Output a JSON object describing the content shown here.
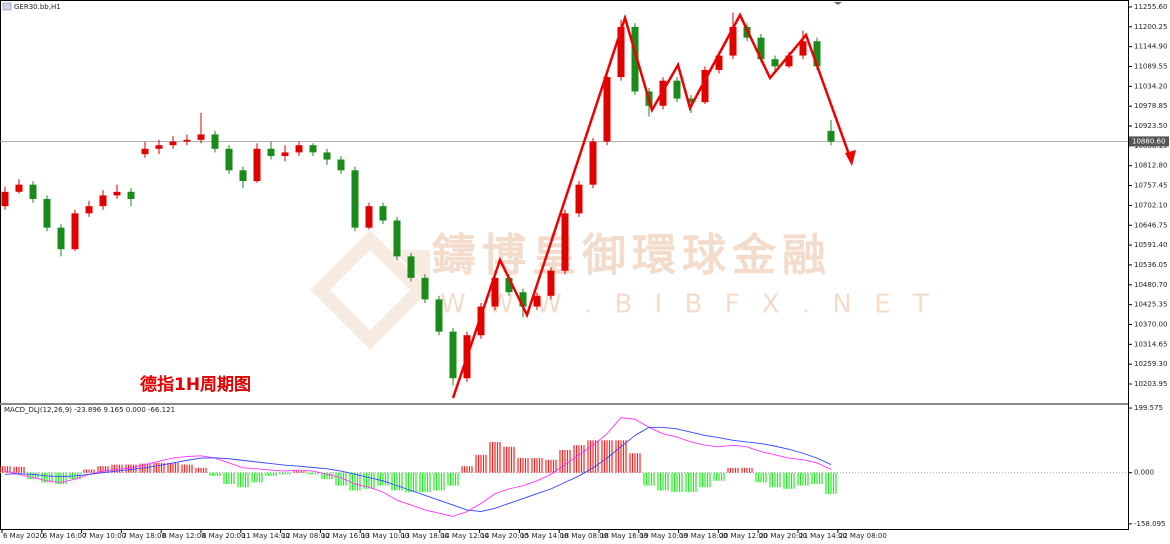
{
  "chart_data": {
    "type": "candlestick",
    "symbol": "GER30.bb,H1",
    "annotation": "德指1H周期图",
    "watermark": "鑄博皇御環球金融",
    "watermark_url": "W W W . B I B F X . N E T",
    "up_color": "#e00000",
    "down_color": "#1a8a1a",
    "ylim": [
      10151,
      11275
    ],
    "yticks": [
      {
        "value": 11255.6,
        "label": "11255.60"
      },
      {
        "value": 11200.25,
        "label": "11200.25"
      },
      {
        "value": 11144.9,
        "label": "11144.90"
      },
      {
        "value": 11089.55,
        "label": "11089.55"
      },
      {
        "value": 11034.2,
        "label": "11034.20"
      },
      {
        "value": 10978.85,
        "label": "10978.85"
      },
      {
        "value": 10923.5,
        "label": "10923.50"
      },
      {
        "value": 10868.15,
        "label": "10868.15"
      },
      {
        "value": 10812.8,
        "label": "10812.80"
      },
      {
        "value": 10757.45,
        "label": "10757.45"
      },
      {
        "value": 10702.1,
        "label": "10702.10"
      },
      {
        "value": 10646.75,
        "label": "10646.75"
      },
      {
        "value": 10591.4,
        "label": "10591.40"
      },
      {
        "value": 10536.05,
        "label": "10536.05"
      },
      {
        "value": 10480.7,
        "label": "10480.70"
      },
      {
        "value": 10425.35,
        "label": "10425.35"
      },
      {
        "value": 10370,
        "label": "10370.00"
      },
      {
        "value": 10314.65,
        "label": "10314.65"
      },
      {
        "value": 10259.3,
        "label": "10259.30"
      },
      {
        "value": 10203.95,
        "label": "10203.95"
      }
    ],
    "current_price": {
      "value": 10880.6,
      "label": "10880.60"
    },
    "x_labels": [
      "6 May 2020",
      "6 May 16:00",
      "7 May 10:00",
      "7 May 18:00",
      "8 May 12:00",
      "8 May 20:00",
      "11 May 14:00",
      "12 May 08:00",
      "12 May 16:00",
      "13 May 10:00",
      "13 May 18:00",
      "14 May 12:00",
      "14 May 20:00",
      "15 May 14:00",
      "18 May 08:00",
      "18 May 16:00",
      "19 May 10:00",
      "19 May 18:00",
      "20 May 12:00",
      "20 May 20:00",
      "21 May 14:00",
      "22 May 08:00"
    ],
    "ohlc": [
      [
        10700,
        10755,
        10690,
        10740
      ],
      [
        10740,
        10775,
        10735,
        10760
      ],
      [
        10760,
        10770,
        10710,
        10720
      ],
      [
        10720,
        10730,
        10630,
        10640
      ],
      [
        10640,
        10650,
        10560,
        10580
      ],
      [
        10580,
        10690,
        10575,
        10680
      ],
      [
        10680,
        10715,
        10670,
        10700
      ],
      [
        10700,
        10745,
        10690,
        10730
      ],
      [
        10730,
        10760,
        10720,
        10740
      ],
      [
        10740,
        10750,
        10700,
        10720
      ],
      [
        10845,
        10880,
        10835,
        10860
      ],
      [
        10860,
        10885,
        10845,
        10870
      ],
      [
        10870,
        10895,
        10860,
        10880
      ],
      [
        10880,
        10900,
        10870,
        10885
      ],
      [
        10885,
        10960,
        10875,
        10900
      ],
      [
        10900,
        10910,
        10850,
        10860
      ],
      [
        10860,
        10870,
        10790,
        10800
      ],
      [
        10800,
        10810,
        10750,
        10770
      ],
      [
        10770,
        10875,
        10765,
        10860
      ],
      [
        10860,
        10880,
        10830,
        10840
      ],
      [
        10840,
        10870,
        10825,
        10850
      ],
      [
        10850,
        10880,
        10840,
        10870
      ],
      [
        10870,
        10875,
        10840,
        10850
      ],
      [
        10850,
        10860,
        10815,
        10830
      ],
      [
        10830,
        10840,
        10790,
        10800
      ],
      [
        10800,
        10810,
        10630,
        10640
      ],
      [
        10640,
        10710,
        10635,
        10700
      ],
      [
        10700,
        10710,
        10650,
        10660
      ],
      [
        10660,
        10670,
        10550,
        10560
      ],
      [
        10560,
        10570,
        10490,
        10500
      ],
      [
        10500,
        10510,
        10430,
        10440
      ],
      [
        10440,
        10450,
        10340,
        10350
      ],
      [
        10350,
        10360,
        10200,
        10220
      ],
      [
        10220,
        10350,
        10210,
        10340
      ],
      [
        10340,
        10430,
        10330,
        10420
      ],
      [
        10420,
        10520,
        10410,
        10500
      ],
      [
        10500,
        10510,
        10450,
        10460
      ],
      [
        10460,
        10470,
        10390,
        10420
      ],
      [
        10420,
        10460,
        10410,
        10450
      ],
      [
        10450,
        10530,
        10440,
        10520
      ],
      [
        10520,
        10690,
        10510,
        10680
      ],
      [
        10680,
        10770,
        10670,
        10760
      ],
      [
        10760,
        10890,
        10750,
        10880
      ],
      [
        10880,
        11070,
        10870,
        11060
      ],
      [
        11060,
        11220,
        11050,
        11200
      ],
      [
        11200,
        11210,
        11010,
        11020
      ],
      [
        11020,
        11030,
        10950,
        10980
      ],
      [
        10980,
        11060,
        10970,
        11050
      ],
      [
        11050,
        11060,
        10990,
        11000
      ],
      [
        11000,
        11010,
        10960,
        10990
      ],
      [
        10990,
        11090,
        10985,
        11080
      ],
      [
        11080,
        11130,
        11070,
        11120
      ],
      [
        11120,
        11240,
        11110,
        11200
      ],
      [
        11200,
        11210,
        11160,
        11170
      ],
      [
        11170,
        11180,
        11100,
        11110
      ],
      [
        11110,
        11120,
        11070,
        11090
      ],
      [
        11090,
        11130,
        11085,
        11120
      ],
      [
        11120,
        11190,
        11110,
        11160
      ],
      [
        11160,
        11170,
        11080,
        11090
      ],
      [
        10910,
        10940,
        10870,
        10880
      ]
    ],
    "macd": {
      "label": "MACD_DLJ(12,26,9) -23.896 9.165 0.000 -66.121",
      "ylim": [
        -177,
        209
      ],
      "yticks": [
        199.575,
        {
          "value": 0,
          "label": "0.000"
        },
        -158.095
      ],
      "histogram": {
        "up_color": "#ff2020",
        "down_color": "#22ee22",
        "values": [
          20,
          18,
          -20,
          -30,
          -35,
          -20,
          10,
          20,
          25,
          25,
          28,
          30,
          30,
          25,
          15,
          -10,
          -35,
          -45,
          -30,
          -10,
          -5,
          5,
          -5,
          -20,
          -40,
          -55,
          -50,
          -40,
          -55,
          -60,
          -60,
          -55,
          -40,
          20,
          55,
          95,
          80,
          45,
          45,
          40,
          70,
          85,
          100,
          100,
          100,
          60,
          -40,
          -55,
          -60,
          -60,
          -45,
          -25,
          15,
          15,
          -30,
          -45,
          -50,
          -40,
          -35,
          -66
        ]
      },
      "lines": [
        {
          "color": "#ff33ff",
          "values": [
            5,
            -5,
            -15,
            -25,
            -30,
            -20,
            -5,
            5,
            10,
            15,
            25,
            35,
            45,
            50,
            52,
            45,
            30,
            15,
            12,
            8,
            5,
            8,
            5,
            -5,
            -15,
            -35,
            -45,
            -60,
            -85,
            -100,
            -115,
            -125,
            -135,
            -120,
            -95,
            -65,
            -50,
            -40,
            -25,
            -5,
            25,
            55,
            85,
            120,
            170,
            165,
            140,
            120,
            110,
            95,
            85,
            80,
            85,
            80,
            65,
            55,
            45,
            40,
            30,
            10
          ]
        },
        {
          "color": "#3344ff",
          "values": [
            -5,
            -3,
            -5,
            -10,
            -12,
            -10,
            -5,
            0,
            5,
            10,
            15,
            22,
            30,
            38,
            45,
            46,
            43,
            38,
            33,
            28,
            23,
            20,
            16,
            12,
            5,
            -5,
            -15,
            -25,
            -40,
            -55,
            -70,
            -85,
            -100,
            -115,
            -120,
            -110,
            -95,
            -80,
            -65,
            -50,
            -30,
            -10,
            15,
            45,
            80,
            115,
            140,
            140,
            135,
            125,
            115,
            108,
            100,
            95,
            90,
            82,
            72,
            60,
            45,
            25
          ]
        }
      ]
    }
  }
}
